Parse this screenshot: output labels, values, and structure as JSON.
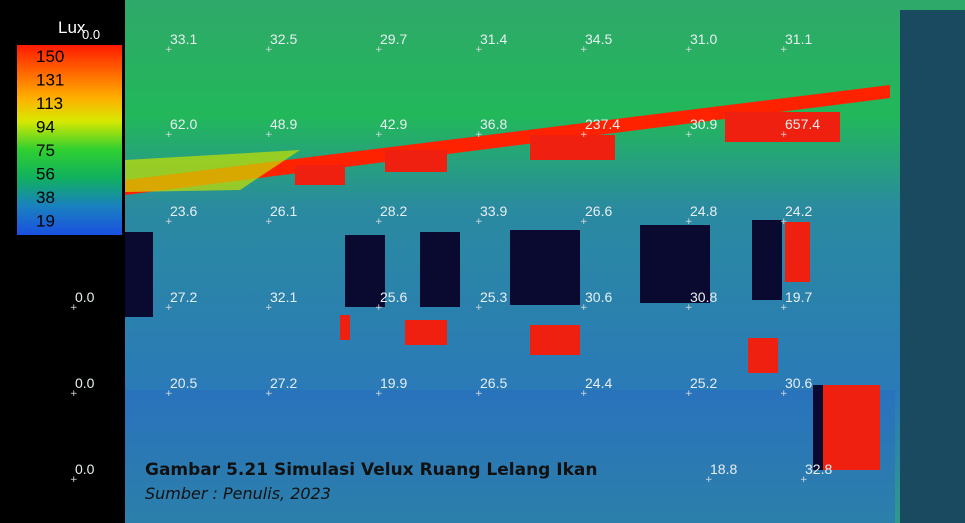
{
  "legend": {
    "title": "Lux",
    "top_label": "0.0",
    "values": [
      "150",
      "131",
      "113",
      "94",
      "75",
      "56",
      "38",
      "19"
    ]
  },
  "readings": [
    [
      "33.1",
      "32.5",
      "29.7",
      "31.4",
      "34.5",
      "31.0",
      "31.1"
    ],
    [
      "62.0",
      "48.9",
      "42.9",
      "36.8",
      "237.4",
      "30.9",
      "657.4"
    ],
    [
      "23.6",
      "26.1",
      "28.2",
      "33.9",
      "26.6",
      "24.8",
      "24.2"
    ],
    [
      "0.0",
      "27.2",
      "32.1",
      "25.6",
      "25.3",
      "30.6",
      "30.8",
      "19.7"
    ],
    [
      "0.0",
      "20.5",
      "27.2",
      "19.9",
      "26.5",
      "24.4",
      "25.2",
      "30.6"
    ],
    [
      "0.0",
      "18.8",
      "32.8"
    ]
  ],
  "caption": {
    "title": "Gambar 5.21 Simulasi Velux Ruang Lelang Ikan",
    "source": "Sumber :  Penulis, 2023"
  }
}
